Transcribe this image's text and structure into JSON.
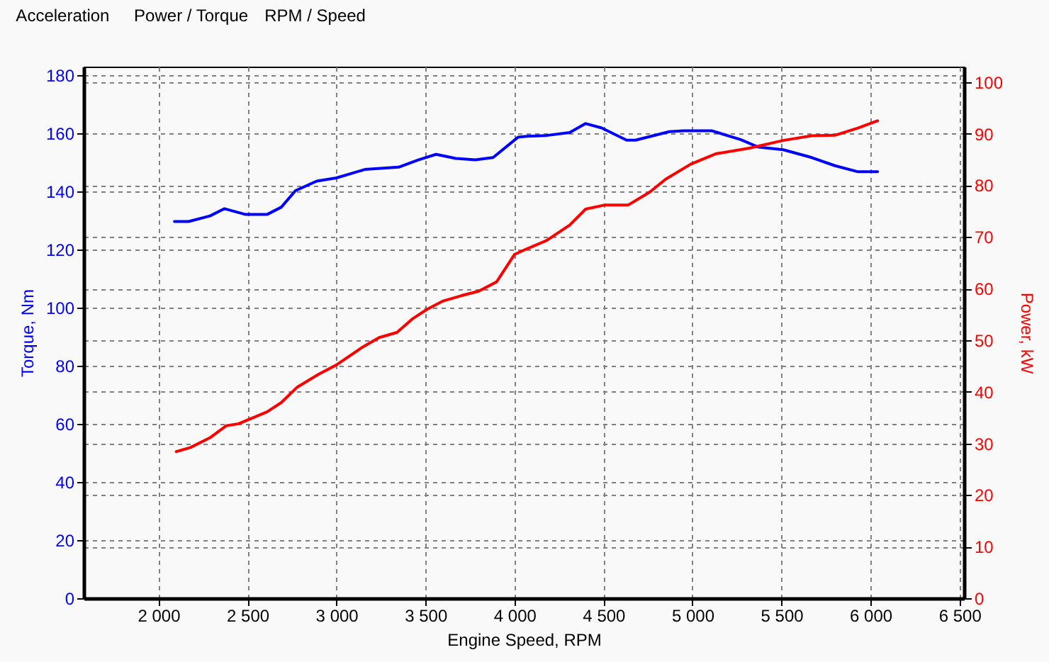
{
  "chart_data": {
    "type": "line",
    "xlabel": "Engine Speed, RPM",
    "ylabel": "Torque, Nm",
    "y2label": "Power, kW",
    "annotations": [
      "Acceleration",
      "Power / Torque",
      "RPM / Speed"
    ],
    "xlim": [
      1580,
      6525
    ],
    "xticks": [
      {
        "value": 2000,
        "label": "2 000"
      },
      {
        "value": 2500,
        "label": "2 500"
      },
      {
        "value": 3000,
        "label": "3 000"
      },
      {
        "value": 3500,
        "label": "3 500"
      },
      {
        "value": 4000,
        "label": "4 000"
      },
      {
        "value": 4500,
        "label": "4 500"
      },
      {
        "value": 5000,
        "label": "5 000"
      },
      {
        "value": 5500,
        "label": "5 500"
      },
      {
        "value": 6000,
        "label": "6 000"
      },
      {
        "value": 6500,
        "label": "6 500"
      }
    ],
    "ylim": [
      0,
      183
    ],
    "yticks": [
      0,
      20,
      40,
      60,
      80,
      100,
      120,
      140,
      160,
      180
    ],
    "y2lim": [
      0,
      103
    ],
    "y2ticks": [
      0,
      10,
      20,
      30,
      40,
      50,
      60,
      70,
      80,
      90,
      100
    ],
    "grid": true,
    "series": [
      {
        "color": "#0000ff",
        "x": [
          2090,
          2170,
          2290,
          2370,
          2490,
          2610,
          2690,
          2770,
          2890,
          3000,
          3160,
          3350,
          3460,
          3560,
          3670,
          3780,
          3880,
          4020,
          4070,
          4180,
          4310,
          4400,
          4490,
          4630,
          4680,
          4870,
          4950,
          5110,
          5270,
          5370,
          5510,
          5670,
          5800,
          5930,
          6040
        ],
        "values": [
          129.7,
          129.7,
          131.6,
          134.1,
          132.1,
          132.1,
          134.6,
          140.3,
          143.6,
          144.7,
          147.6,
          148.4,
          150.9,
          152.8,
          151.4,
          150.9,
          151.7,
          158.7,
          159.0,
          159.3,
          160.3,
          163.4,
          161.9,
          157.7,
          157.7,
          160.6,
          160.9,
          160.9,
          157.9,
          155.3,
          154.4,
          151.7,
          148.9,
          146.8,
          146.8
        ]
      },
      {
        "color": "#ff0000",
        "axis": "y2",
        "x": [
          2100,
          2180,
          2290,
          2380,
          2450,
          2610,
          2690,
          2780,
          2900,
          3000,
          3140,
          3240,
          3340,
          3430,
          3510,
          3600,
          3700,
          3800,
          3900,
          4000,
          4070,
          4180,
          4310,
          4400,
          4510,
          4640,
          4760,
          4850,
          4990,
          5130,
          5320,
          5510,
          5670,
          5800,
          5930,
          6040
        ],
        "values": [
          28.4,
          29.2,
          31.1,
          33.4,
          33.8,
          36.1,
          37.9,
          40.9,
          43.4,
          45.2,
          48.5,
          50.5,
          51.5,
          54.2,
          56.0,
          57.6,
          58.6,
          59.5,
          61.3,
          66.6,
          67.7,
          69.3,
          72.3,
          75.4,
          76.2,
          76.2,
          78.7,
          81.2,
          84.1,
          86.1,
          87.2,
          88.7,
          89.6,
          89.7,
          91.1,
          92.5
        ]
      }
    ]
  }
}
